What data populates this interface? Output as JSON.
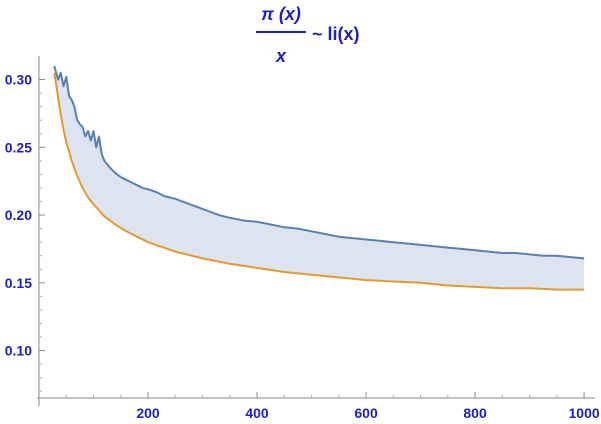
{
  "chart_data": {
    "type": "area",
    "title": {
      "numerator": "π (x)",
      "denominator": "x",
      "suffix": "~ li(x)"
    },
    "xlabel": "",
    "ylabel": "",
    "xlim": [
      0,
      1020
    ],
    "ylim": [
      0.065,
      0.31
    ],
    "xticks": [
      200,
      400,
      600,
      800,
      1000
    ],
    "yticks": [
      0.1,
      0.15,
      0.2,
      0.25,
      0.3
    ],
    "xtick_labels": [
      "200",
      "400",
      "600",
      "800",
      "1000"
    ],
    "ytick_labels": [
      "0.10",
      "0.15",
      "0.20",
      "0.25",
      "0.30"
    ],
    "grid": false,
    "series": [
      {
        "color": "#5b7fae",
        "fill": "#dde4f0",
        "x": [
          28,
          35,
          40,
          45,
          50,
          55,
          60,
          65,
          70,
          75,
          80,
          85,
          90,
          95,
          100,
          105,
          110,
          115,
          120,
          130,
          140,
          150,
          160,
          170,
          180,
          190,
          200,
          215,
          230,
          250,
          270,
          290,
          310,
          330,
          350,
          375,
          400,
          425,
          450,
          475,
          500,
          525,
          550,
          575,
          600,
          625,
          650,
          675,
          700,
          725,
          750,
          775,
          800,
          825,
          850,
          875,
          900,
          925,
          950,
          975,
          1000
        ],
        "values": [
          0.31,
          0.3,
          0.305,
          0.295,
          0.302,
          0.288,
          0.285,
          0.28,
          0.27,
          0.267,
          0.265,
          0.258,
          0.262,
          0.255,
          0.262,
          0.25,
          0.258,
          0.245,
          0.24,
          0.235,
          0.231,
          0.228,
          0.226,
          0.224,
          0.222,
          0.22,
          0.219,
          0.217,
          0.214,
          0.212,
          0.209,
          0.206,
          0.203,
          0.2,
          0.198,
          0.196,
          0.195,
          0.193,
          0.191,
          0.19,
          0.188,
          0.186,
          0.184,
          0.183,
          0.182,
          0.181,
          0.18,
          0.179,
          0.178,
          0.177,
          0.176,
          0.175,
          0.174,
          0.173,
          0.172,
          0.172,
          0.171,
          0.17,
          0.17,
          0.169,
          0.168
        ]
      },
      {
        "color": "#e39a2d",
        "x": [
          28,
          35,
          40,
          45,
          50,
          60,
          70,
          80,
          90,
          100,
          120,
          140,
          160,
          180,
          200,
          250,
          300,
          350,
          400,
          450,
          500,
          550,
          600,
          650,
          700,
          750,
          800,
          850,
          900,
          950,
          1000
        ],
        "values": [
          0.305,
          0.287,
          0.274,
          0.263,
          0.254,
          0.24,
          0.229,
          0.22,
          0.213,
          0.208,
          0.199,
          0.193,
          0.188,
          0.184,
          0.18,
          0.173,
          0.168,
          0.164,
          0.161,
          0.158,
          0.156,
          0.154,
          0.152,
          0.151,
          0.15,
          0.148,
          0.147,
          0.146,
          0.146,
          0.145,
          0.145
        ]
      }
    ]
  }
}
